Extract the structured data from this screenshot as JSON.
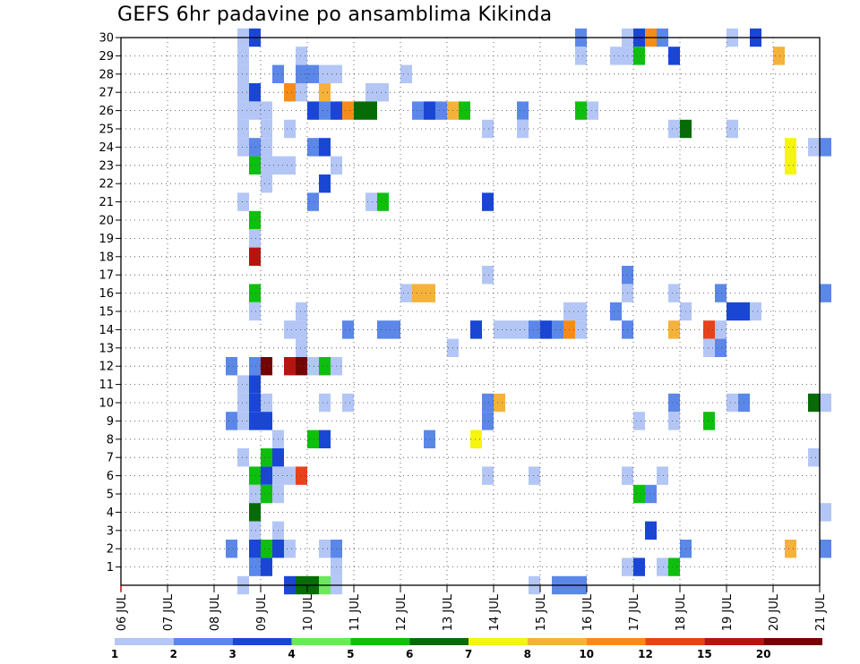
{
  "title": "GEFS 6hr padavine po ansamblima Kikinda",
  "chart_data": {
    "type": "heatmap",
    "title": "GEFS 6hr padavine po ansamblima Kikinda",
    "xlabel": "",
    "ylabel": "",
    "x_range": [
      "06 JUL",
      "21 JUL"
    ],
    "x_step": "6hr",
    "x_ticks": [
      "06 JUL",
      "07 JUL",
      "08 JUL",
      "09 JUL",
      "10 JUL",
      "11 JUL",
      "12 JUL",
      "13 JUL",
      "14 JUL",
      "15 JUL",
      "16 JUL",
      "17 JUL",
      "18 JUL",
      "19 JUL",
      "20 JUL",
      "21 JUL"
    ],
    "y_ticks": [
      1,
      2,
      3,
      4,
      5,
      6,
      7,
      8,
      9,
      10,
      11,
      12,
      13,
      14,
      15,
      16,
      17,
      18,
      19,
      20,
      21,
      22,
      23,
      24,
      25,
      26,
      27,
      28,
      29,
      30
    ],
    "y_range": [
      0,
      30
    ],
    "grid": true,
    "colorbar": {
      "levels": [
        "1",
        "2",
        "3",
        "4",
        "5",
        "6",
        "7",
        "8",
        "10",
        "12",
        "15",
        "20"
      ],
      "colors": [
        "#b3c6f5",
        "#5b87e8",
        "#1a46d6",
        "#6ce85c",
        "#0fbf0f",
        "#076b07",
        "#f5f50f",
        "#f5b23a",
        "#f58c1a",
        "#e8421a",
        "#b8140f",
        "#730404"
      ]
    },
    "cells_format": "[time index (6-hour steps from 06 JUL 00z), ensemble member, color class 0-11]",
    "cells": [
      [
        10,
        30,
        0
      ],
      [
        10,
        29,
        0
      ],
      [
        10,
        28,
        0
      ],
      [
        10,
        27,
        0
      ],
      [
        10,
        26,
        0
      ],
      [
        10,
        25,
        0
      ],
      [
        10,
        24,
        0
      ],
      [
        10,
        21,
        0
      ],
      [
        10,
        11,
        0
      ],
      [
        10,
        10,
        0
      ],
      [
        10,
        9,
        0
      ],
      [
        10,
        7,
        0
      ],
      [
        10,
        0,
        0
      ],
      [
        10,
        30,
        0
      ],
      [
        11,
        30,
        2
      ],
      [
        11,
        27,
        2
      ],
      [
        11,
        26,
        0
      ],
      [
        11,
        24,
        1
      ],
      [
        11,
        23,
        4
      ],
      [
        11,
        20,
        4
      ],
      [
        11,
        19,
        0
      ],
      [
        11,
        18,
        10
      ],
      [
        11,
        16,
        4
      ],
      [
        11,
        15,
        0
      ],
      [
        11,
        12,
        1
      ],
      [
        11,
        11,
        2
      ],
      [
        11,
        10,
        2
      ],
      [
        11,
        9,
        2
      ],
      [
        11,
        6,
        4
      ],
      [
        11,
        5,
        0
      ],
      [
        11,
        4,
        5
      ],
      [
        11,
        3,
        0
      ],
      [
        11,
        2,
        2
      ],
      [
        11,
        1,
        1
      ],
      [
        12,
        26,
        0
      ],
      [
        12,
        25,
        0
      ],
      [
        12,
        24,
        0
      ],
      [
        12,
        23,
        0
      ],
      [
        12,
        22,
        0
      ],
      [
        12,
        12,
        11
      ],
      [
        12,
        10,
        0
      ],
      [
        12,
        9,
        2
      ],
      [
        12,
        7,
        4
      ],
      [
        12,
        6,
        2
      ],
      [
        12,
        5,
        4
      ],
      [
        12,
        2,
        4
      ],
      [
        12,
        1,
        2
      ],
      [
        9,
        12,
        1
      ],
      [
        9,
        2,
        1
      ],
      [
        9,
        9,
        1
      ],
      [
        13,
        28,
        1
      ],
      [
        13,
        23,
        0
      ],
      [
        13,
        7,
        2
      ],
      [
        13,
        8,
        0
      ],
      [
        13,
        6,
        0
      ],
      [
        13,
        5,
        0
      ],
      [
        13,
        3,
        0
      ],
      [
        13,
        2,
        2
      ],
      [
        14,
        27,
        8
      ],
      [
        14,
        23,
        0
      ],
      [
        14,
        25,
        0
      ],
      [
        14,
        14,
        0
      ],
      [
        14,
        12,
        10
      ],
      [
        14,
        6,
        0
      ],
      [
        14,
        2,
        0
      ],
      [
        14,
        0,
        2
      ],
      [
        15,
        29,
        0
      ],
      [
        15,
        28,
        1
      ],
      [
        15,
        27,
        0
      ],
      [
        15,
        15,
        0
      ],
      [
        15,
        14,
        0
      ],
      [
        15,
        13,
        0
      ],
      [
        15,
        12,
        11
      ],
      [
        15,
        6,
        9
      ],
      [
        15,
        0,
        5
      ],
      [
        16,
        28,
        1
      ],
      [
        16,
        26,
        2
      ],
      [
        16,
        24,
        1
      ],
      [
        16,
        21,
        1
      ],
      [
        16,
        12,
        0
      ],
      [
        16,
        8,
        4
      ],
      [
        16,
        0,
        5
      ],
      [
        17,
        28,
        0
      ],
      [
        17,
        27,
        7
      ],
      [
        17,
        26,
        1
      ],
      [
        17,
        24,
        2
      ],
      [
        17,
        22,
        2
      ],
      [
        17,
        12,
        4
      ],
      [
        17,
        10,
        0
      ],
      [
        17,
        8,
        2
      ],
      [
        17,
        2,
        0
      ],
      [
        17,
        0,
        3
      ],
      [
        18,
        28,
        0
      ],
      [
        18,
        26,
        2
      ],
      [
        18,
        23,
        0
      ],
      [
        18,
        12,
        0
      ],
      [
        18,
        2,
        1
      ],
      [
        18,
        1,
        0
      ],
      [
        18,
        0,
        0
      ],
      [
        19,
        26,
        8
      ],
      [
        19,
        14,
        1
      ],
      [
        19,
        10,
        0
      ],
      [
        20,
        26,
        5
      ],
      [
        21,
        27,
        0
      ],
      [
        21,
        26,
        5
      ],
      [
        21,
        21,
        0
      ],
      [
        22,
        27,
        0
      ],
      [
        22,
        21,
        4
      ],
      [
        22,
        14,
        1
      ],
      [
        23,
        14,
        1
      ],
      [
        24,
        28,
        0
      ],
      [
        24,
        16,
        0
      ],
      [
        25,
        26,
        1
      ],
      [
        25,
        16,
        7
      ],
      [
        26,
        26,
        2
      ],
      [
        26,
        16,
        7
      ],
      [
        26,
        8,
        1
      ],
      [
        27,
        26,
        1
      ],
      [
        28,
        26,
        7
      ],
      [
        28,
        13,
        0
      ],
      [
        29,
        26,
        4
      ],
      [
        30,
        14,
        2
      ],
      [
        30,
        8,
        6
      ],
      [
        31,
        25,
        0
      ],
      [
        31,
        21,
        2
      ],
      [
        31,
        17,
        0
      ],
      [
        31,
        10,
        1
      ],
      [
        31,
        9,
        1
      ],
      [
        31,
        6,
        0
      ],
      [
        32,
        14,
        0
      ],
      [
        32,
        10,
        7
      ],
      [
        33,
        14,
        0
      ],
      [
        34,
        26,
        1
      ],
      [
        34,
        25,
        0
      ],
      [
        34,
        14,
        0
      ],
      [
        35,
        14,
        1
      ],
      [
        35,
        6,
        0
      ],
      [
        35,
        0,
        0
      ],
      [
        36,
        14,
        2
      ],
      [
        37,
        14,
        1
      ],
      [
        37,
        0,
        1
      ],
      [
        38,
        15,
        0
      ],
      [
        38,
        14,
        8
      ],
      [
        38,
        0,
        1
      ],
      [
        39,
        30,
        1
      ],
      [
        39,
        29,
        0
      ],
      [
        39,
        26,
        4
      ],
      [
        39,
        15,
        0
      ],
      [
        39,
        14,
        0
      ],
      [
        39,
        0,
        1
      ],
      [
        40,
        26,
        0
      ],
      [
        42,
        29,
        0
      ],
      [
        42,
        15,
        1
      ],
      [
        43,
        30,
        0
      ],
      [
        43,
        29,
        0
      ],
      [
        43,
        17,
        1
      ],
      [
        43,
        16,
        0
      ],
      [
        43,
        14,
        1
      ],
      [
        43,
        6,
        0
      ],
      [
        43,
        1,
        0
      ],
      [
        44,
        30,
        2
      ],
      [
        44,
        29,
        4
      ],
      [
        44,
        9,
        0
      ],
      [
        44,
        5,
        4
      ],
      [
        44,
        1,
        2
      ],
      [
        45,
        30,
        8
      ],
      [
        45,
        5,
        1
      ],
      [
        45,
        3,
        2
      ],
      [
        46,
        30,
        1
      ],
      [
        46,
        6,
        0
      ],
      [
        46,
        1,
        0
      ],
      [
        47,
        29,
        2
      ],
      [
        47,
        25,
        0
      ],
      [
        47,
        16,
        0
      ],
      [
        47,
        14,
        7
      ],
      [
        47,
        10,
        1
      ],
      [
        47,
        9,
        0
      ],
      [
        47,
        1,
        4
      ],
      [
        48,
        25,
        5
      ],
      [
        48,
        15,
        0
      ],
      [
        48,
        2,
        1
      ],
      [
        50,
        14,
        9
      ],
      [
        50,
        13,
        0
      ],
      [
        50,
        9,
        4
      ],
      [
        51,
        16,
        1
      ],
      [
        51,
        14,
        0
      ],
      [
        51,
        13,
        1
      ],
      [
        52,
        30,
        0
      ],
      [
        52,
        25,
        0
      ],
      [
        52,
        15,
        2
      ],
      [
        52,
        10,
        0
      ],
      [
        53,
        15,
        2
      ],
      [
        53,
        10,
        1
      ],
      [
        54,
        30,
        2
      ],
      [
        54,
        15,
        0
      ],
      [
        56,
        29,
        7
      ],
      [
        57,
        24,
        6
      ],
      [
        57,
        23,
        6
      ],
      [
        57,
        2,
        7
      ],
      [
        59,
        24,
        0
      ],
      [
        59,
        7,
        0
      ],
      [
        60,
        24,
        1
      ],
      [
        60,
        16,
        1
      ],
      [
        60,
        10,
        0
      ],
      [
        60,
        4,
        0
      ],
      [
        60,
        2,
        1
      ],
      [
        59,
        10,
        5
      ]
    ]
  }
}
